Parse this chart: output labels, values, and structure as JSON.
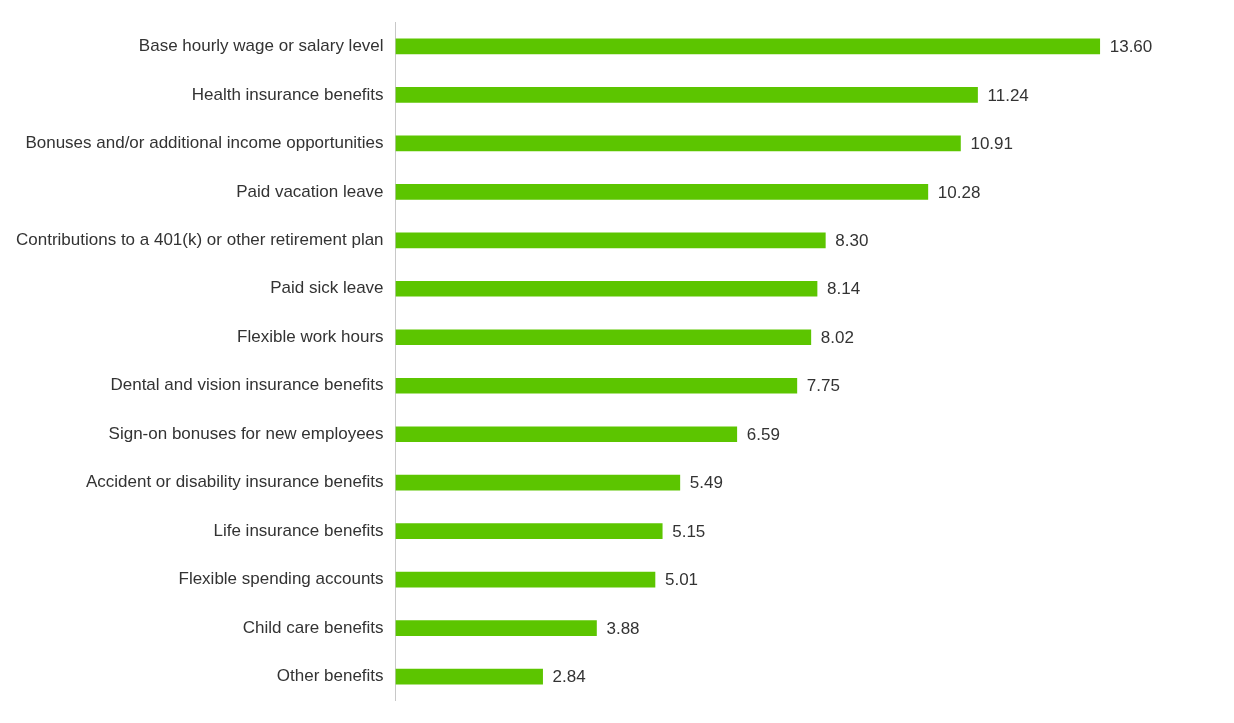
{
  "chart_data": {
    "type": "bar",
    "orientation": "horizontal",
    "categories": [
      "Base hourly wage or salary level",
      "Health insurance benefits",
      "Bonuses and/or additional income opportunities",
      "Paid vacation leave",
      "Contributions to a 401(k) or other retirement plan",
      "Paid sick leave",
      "Flexible work hours",
      "Dental and vision insurance benefits",
      "Sign-on bonuses for new employees",
      "Accident or disability insurance benefits",
      "Life insurance benefits",
      "Flexible spending accounts",
      "Child care benefits",
      "Other benefits"
    ],
    "values": [
      13.6,
      11.24,
      10.91,
      10.28,
      8.3,
      8.14,
      8.02,
      7.75,
      6.59,
      5.49,
      5.15,
      5.01,
      3.88,
      2.84
    ],
    "value_labels": [
      "13.60",
      "11.24",
      "10.91",
      "10.28",
      "8.30",
      "8.14",
      "8.02",
      "7.75",
      "6.59",
      "5.49",
      "5.15",
      "5.01",
      "3.88",
      "2.84"
    ],
    "color": "#5cc500"
  }
}
